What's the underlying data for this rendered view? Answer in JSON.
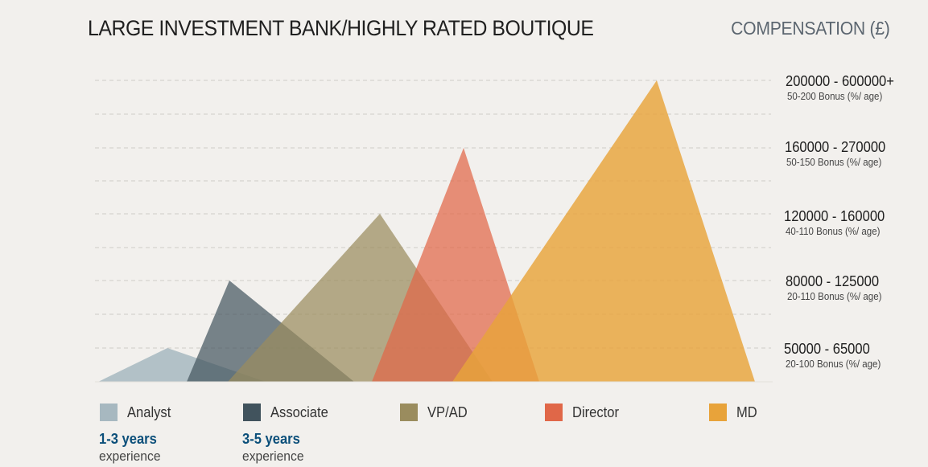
{
  "chart_data": {
    "type": "area",
    "title": "LARGE INVESTMENT BANK/HIGHLY RATED BOUTIQUE",
    "ylabel": "COMPENSATION (£)",
    "y_bands": [
      {
        "range": "50000 - 65000",
        "bonus": "20-100 Bonus (%/ age)"
      },
      {
        "range": "80000 - 125000",
        "bonus": "20-110 Bonus (%/ age)"
      },
      {
        "range": "120000 - 160000",
        "bonus": "40-110 Bonus (%/ age)"
      },
      {
        "range": "160000 - 270000",
        "bonus": "50-150 Bonus (%/ age)"
      },
      {
        "range": "200000 - 600000+",
        "bonus": "50-200 Bonus (%/ age)"
      }
    ],
    "series": [
      {
        "name": "Analyst",
        "color": "#a7b8c0",
        "peak_band": 1,
        "experience": "1-3 years"
      },
      {
        "name": "Associate",
        "color": "#41535d",
        "peak_band": 2,
        "experience": "3-5 years"
      },
      {
        "name": "VP/AD",
        "color": "#9a8c5e",
        "peak_band": 3,
        "experience": ""
      },
      {
        "name": "Director",
        "color": "#e06748",
        "peak_band": 4,
        "experience": ""
      },
      {
        "name": "MD",
        "color": "#e8a33a",
        "peak_band": 5,
        "experience": ""
      }
    ],
    "experience_label": "experience",
    "grid": true,
    "legend_position": "bottom"
  }
}
